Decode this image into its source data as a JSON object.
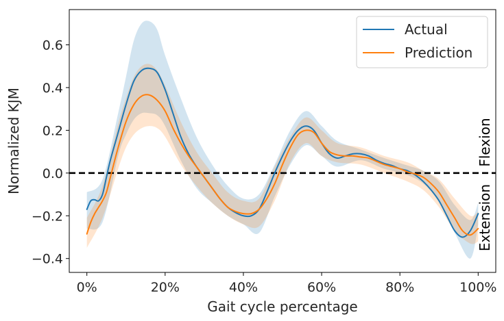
{
  "chart_data": {
    "type": "line",
    "xlabel": "Gait cycle percentage",
    "ylabel": "Normalized KJM",
    "xlim": [
      -4.5,
      104.5
    ],
    "ylim": [
      -0.465,
      0.765
    ],
    "x_ticks": [
      0,
      20,
      40,
      60,
      80,
      100
    ],
    "x_tick_labels": [
      "0%",
      "20%",
      "40%",
      "60%",
      "80%",
      "100%"
    ],
    "y_ticks": [
      -0.4,
      -0.2,
      0.0,
      0.2,
      0.4,
      0.6
    ],
    "y_tick_labels": [
      "−0.4",
      "−0.2",
      "0.0",
      "0.2",
      "0.4",
      "0.6"
    ],
    "grid": false,
    "legend": {
      "position": "top-right",
      "entries": [
        {
          "label": "Actual",
          "color": "#1f77b4"
        },
        {
          "label": "Prediction",
          "color": "#ff7f0e"
        }
      ]
    },
    "reference_line": {
      "y": 0.0,
      "style": "dashed",
      "color": "#000000"
    },
    "annotations": {
      "upper": "Flexion",
      "lower": "Extension"
    },
    "band_colors": {
      "actual": "#1f77b4",
      "prediction": "#ff7f0e"
    },
    "series": [
      {
        "name": "Actual",
        "color": "#1f77b4",
        "x": [
          0,
          1,
          2,
          3,
          4,
          5,
          6,
          8,
          10,
          12,
          14,
          16,
          18,
          20,
          22,
          24,
          26,
          28,
          30,
          32,
          34,
          36,
          38,
          40,
          42,
          44,
          46,
          48,
          50,
          52,
          54,
          56,
          58,
          60,
          62,
          64,
          66,
          68,
          70,
          72,
          74,
          76,
          78,
          80,
          82,
          84,
          86,
          88,
          90,
          92,
          94,
          96,
          98,
          100
        ],
        "y": [
          -0.17,
          -0.13,
          -0.125,
          -0.13,
          -0.1,
          -0.02,
          0.06,
          0.19,
          0.32,
          0.43,
          0.48,
          0.49,
          0.47,
          0.39,
          0.28,
          0.17,
          0.09,
          0.03,
          -0.02,
          -0.07,
          -0.12,
          -0.16,
          -0.185,
          -0.2,
          -0.2,
          -0.17,
          -0.09,
          0.0,
          0.08,
          0.15,
          0.2,
          0.22,
          0.2,
          0.14,
          0.09,
          0.07,
          0.08,
          0.09,
          0.09,
          0.08,
          0.06,
          0.045,
          0.035,
          0.02,
          0.01,
          -0.01,
          -0.04,
          -0.08,
          -0.13,
          -0.2,
          -0.27,
          -0.3,
          -0.27,
          -0.19
        ]
      },
      {
        "name": "Prediction",
        "color": "#ff7f0e",
        "x": [
          0,
          1,
          2,
          3,
          4,
          5,
          6,
          8,
          10,
          12,
          14,
          16,
          18,
          20,
          22,
          24,
          26,
          28,
          30,
          32,
          34,
          36,
          38,
          40,
          42,
          44,
          46,
          48,
          50,
          52,
          54,
          56,
          58,
          60,
          62,
          64,
          66,
          68,
          70,
          72,
          74,
          76,
          78,
          80,
          82,
          84,
          86,
          88,
          90,
          92,
          94,
          96,
          98,
          100
        ],
        "y": [
          -0.285,
          -0.23,
          -0.19,
          -0.16,
          -0.13,
          -0.09,
          -0.02,
          0.12,
          0.24,
          0.32,
          0.36,
          0.365,
          0.34,
          0.29,
          0.21,
          0.14,
          0.08,
          0.03,
          -0.02,
          -0.07,
          -0.12,
          -0.16,
          -0.18,
          -0.19,
          -0.19,
          -0.17,
          -0.12,
          -0.05,
          0.04,
          0.12,
          0.18,
          0.2,
          0.19,
          0.14,
          0.1,
          0.085,
          0.08,
          0.08,
          0.075,
          0.07,
          0.055,
          0.04,
          0.03,
          0.02,
          0.005,
          -0.005,
          -0.02,
          -0.05,
          -0.09,
          -0.15,
          -0.21,
          -0.27,
          -0.29,
          -0.26
        ]
      }
    ],
    "bands": [
      {
        "series": "Actual",
        "x": [
          0,
          4,
          8,
          10,
          12,
          14,
          16,
          18,
          20,
          24,
          28,
          32,
          36,
          40,
          44,
          48,
          52,
          56,
          60,
          64,
          70,
          76,
          82,
          86,
          90,
          94,
          98,
          100
        ],
        "upper": [
          -0.09,
          -0.03,
          0.28,
          0.45,
          0.62,
          0.7,
          0.71,
          0.67,
          0.55,
          0.35,
          0.17,
          0.04,
          -0.06,
          -0.12,
          -0.1,
          0.04,
          0.2,
          0.29,
          0.22,
          0.15,
          0.11,
          0.07,
          0.035,
          0.01,
          -0.04,
          -0.15,
          -0.22,
          -0.14
        ],
        "lower": [
          -0.26,
          -0.23,
          0.08,
          0.18,
          0.25,
          0.28,
          0.28,
          0.27,
          0.22,
          0.06,
          -0.07,
          -0.14,
          -0.2,
          -0.24,
          -0.28,
          -0.11,
          0.04,
          0.13,
          0.08,
          0.03,
          0.06,
          0.02,
          -0.01,
          -0.05,
          -0.13,
          -0.28,
          -0.4,
          -0.24
        ]
      },
      {
        "series": "Prediction",
        "x": [
          0,
          4,
          8,
          10,
          12,
          14,
          16,
          18,
          20,
          24,
          28,
          32,
          36,
          40,
          44,
          48,
          52,
          56,
          60,
          64,
          70,
          76,
          82,
          86,
          90,
          94,
          98,
          100
        ],
        "upper": [
          -0.21,
          -0.06,
          0.23,
          0.35,
          0.45,
          0.5,
          0.51,
          0.48,
          0.41,
          0.24,
          0.1,
          0.0,
          -0.09,
          -0.13,
          -0.12,
          0.03,
          0.17,
          0.26,
          0.2,
          0.14,
          0.12,
          0.08,
          0.05,
          0.01,
          -0.03,
          -0.12,
          -0.2,
          -0.18
        ],
        "lower": [
          -0.35,
          -0.21,
          0.02,
          0.12,
          0.18,
          0.21,
          0.22,
          0.21,
          0.17,
          0.04,
          -0.06,
          -0.14,
          -0.2,
          -0.24,
          -0.25,
          -0.13,
          0.05,
          0.14,
          0.08,
          0.05,
          0.04,
          0.0,
          -0.04,
          -0.08,
          -0.16,
          -0.27,
          -0.33,
          -0.32
        ]
      }
    ]
  }
}
